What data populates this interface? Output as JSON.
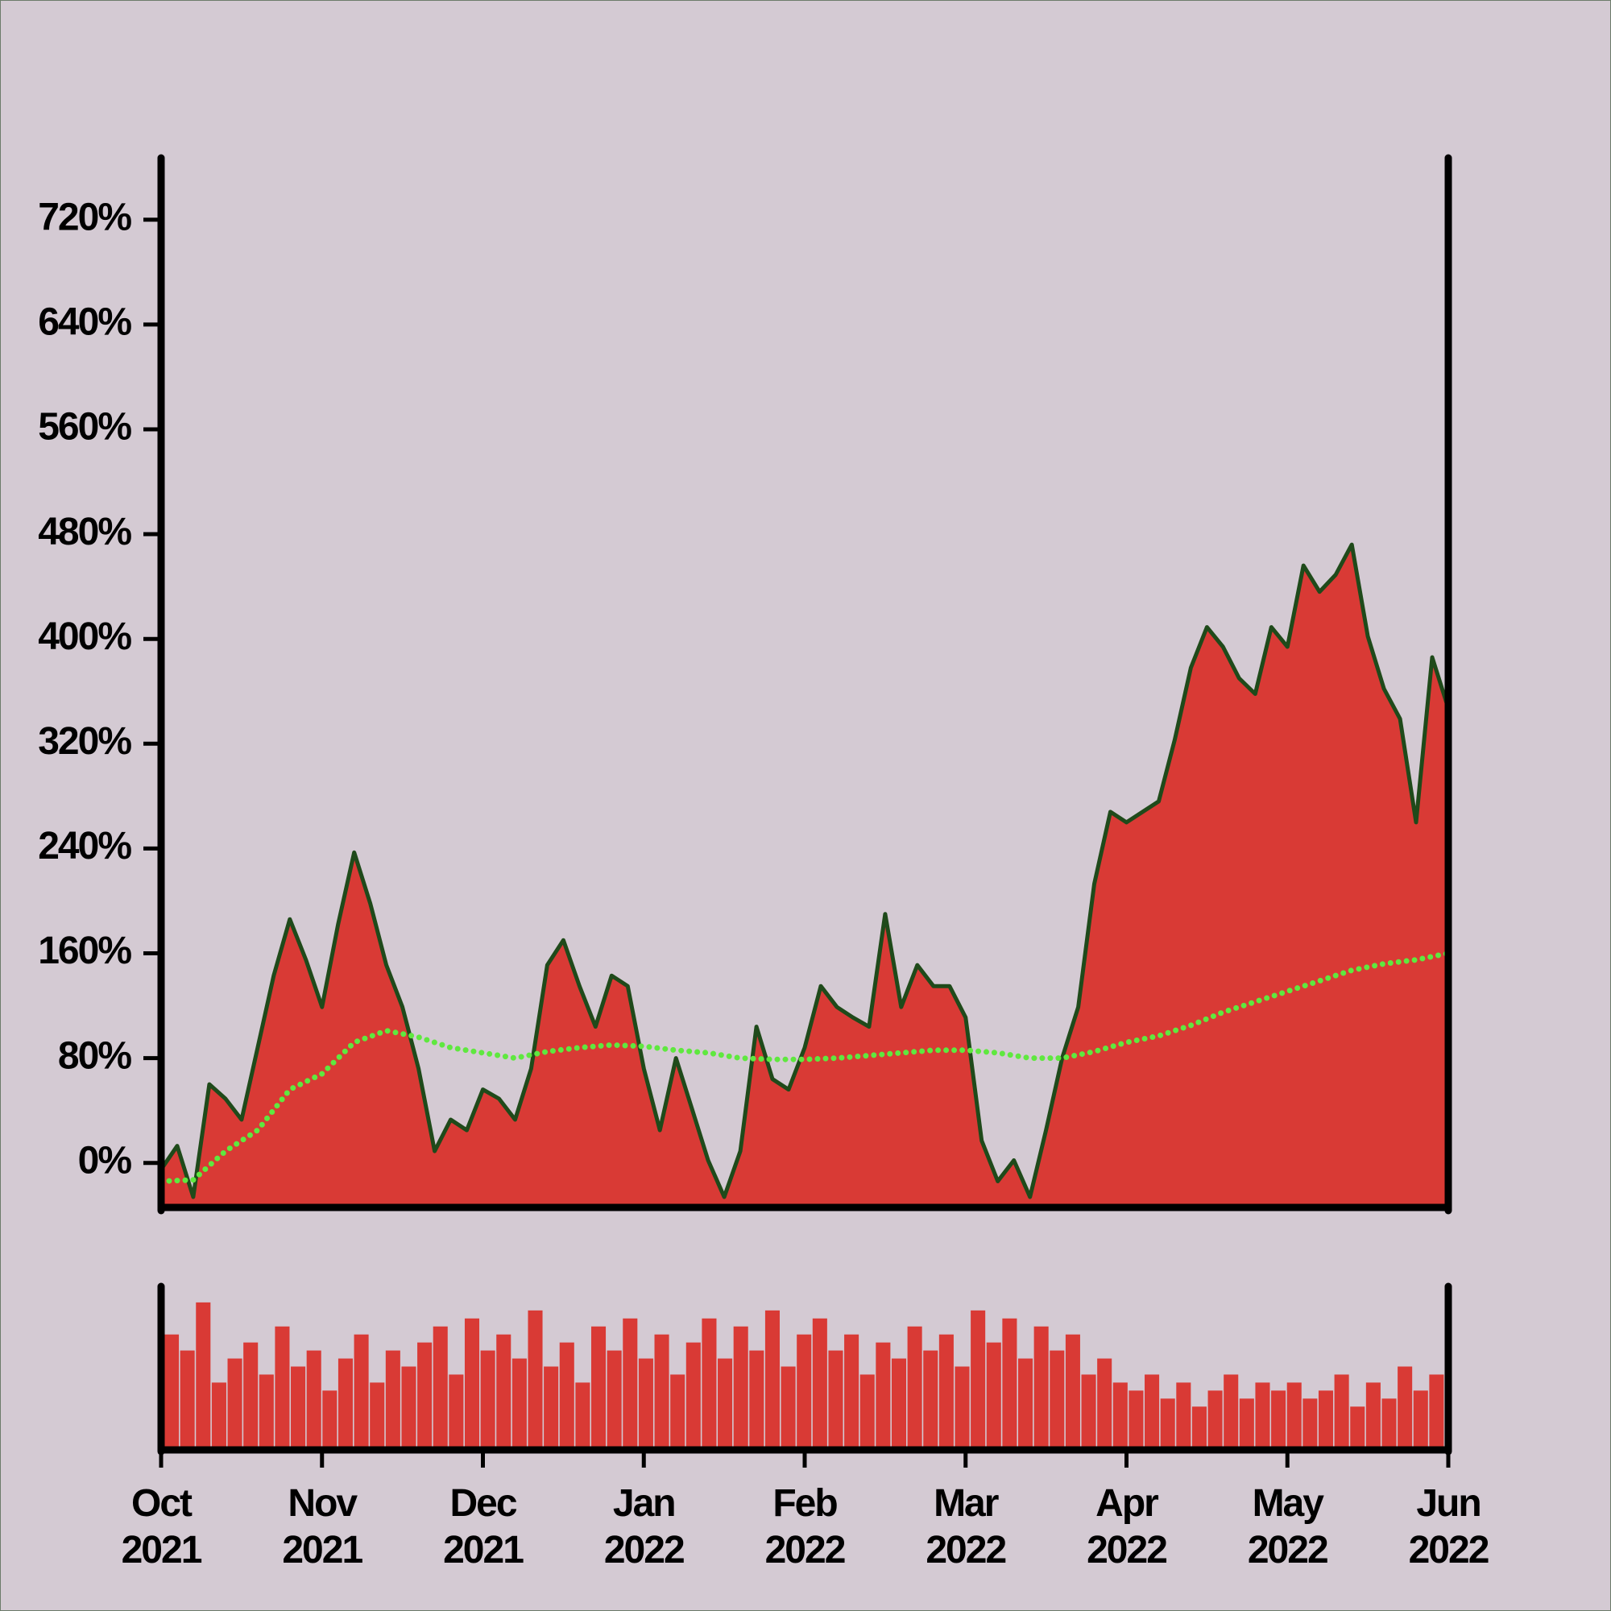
{
  "chart_data": [
    {
      "type": "area",
      "xlim": [
        "2021-10",
        "2022-06"
      ],
      "ylim": [
        -34,
        766
      ],
      "yticks": [
        {
          "value": 0,
          "label": "0%"
        },
        {
          "value": 80,
          "label": "80%"
        },
        {
          "value": 160,
          "label": "160%"
        },
        {
          "value": 240,
          "label": "240%"
        },
        {
          "value": 320,
          "label": "320%"
        },
        {
          "value": 400,
          "label": "400%"
        },
        {
          "value": 480,
          "label": "480%"
        },
        {
          "value": 560,
          "label": "560%"
        },
        {
          "value": 640,
          "label": "640%"
        },
        {
          "value": 720,
          "label": "720%"
        }
      ],
      "series": [
        {
          "type": "area",
          "color": "#d93a35",
          "line_color": "#1f4a1a",
          "values": [
            -5,
            13,
            -26,
            60,
            49,
            33,
            88,
            143,
            186,
            155,
            119,
            182,
            237,
            198,
            151,
            119,
            72,
            9,
            33,
            25,
            56,
            49,
            33,
            72,
            151,
            170,
            135,
            104,
            143,
            135,
            72,
            25,
            80,
            41,
            2,
            -26,
            9,
            104,
            64,
            56,
            88,
            135,
            119,
            111,
            104,
            190,
            119,
            151,
            135,
            135,
            111,
            17,
            -14,
            2,
            -26,
            25,
            80,
            119,
            213,
            268,
            260,
            268,
            276,
            323,
            378,
            409,
            394,
            370,
            358,
            409,
            394,
            456,
            436,
            449,
            472,
            402,
            362,
            339,
            260,
            386,
            347
          ]
        },
        {
          "type": "dotted-line",
          "color": "#5fe83f",
          "values": [
            -14,
            -13,
            9,
            25,
            56,
            68,
            92,
            101,
            96,
            88,
            84,
            80,
            85,
            88,
            90,
            89,
            86,
            84,
            80,
            79,
            79,
            80,
            82,
            84,
            86,
            86,
            84,
            80,
            80,
            85,
            92,
            97,
            105,
            115,
            123,
            131,
            139,
            147,
            152,
            155,
            160
          ]
        }
      ]
    },
    {
      "type": "bar",
      "xlim": [
        "2021-10",
        "2022-06"
      ],
      "xticks": [
        {
          "value": "2021-10",
          "label": "Oct\n2021"
        },
        {
          "value": "2021-11",
          "label": "Nov\n2021"
        },
        {
          "value": "2021-12",
          "label": "Dec\n2021"
        },
        {
          "value": "2022-01",
          "label": "Jan\n2022"
        },
        {
          "value": "2022-02",
          "label": "Feb\n2022"
        },
        {
          "value": "2022-03",
          "label": "Mar\n2022"
        },
        {
          "value": "2022-04",
          "label": "Apr\n2022"
        },
        {
          "value": "2022-05",
          "label": "May\n2022"
        },
        {
          "value": "2022-06",
          "label": "Jun\n2022"
        }
      ],
      "ylim": [
        0,
        100
      ],
      "color": "#d93a35",
      "values": [
        70,
        60,
        90,
        40,
        55,
        65,
        45,
        75,
        50,
        60,
        35,
        55,
        70,
        40,
        60,
        50,
        65,
        75,
        45,
        80,
        60,
        70,
        55,
        85,
        50,
        65,
        40,
        75,
        60,
        80,
        55,
        70,
        45,
        65,
        80,
        55,
        75,
        60,
        85,
        50,
        70,
        80,
        60,
        70,
        45,
        65,
        55,
        75,
        60,
        70,
        50,
        85,
        65,
        80,
        55,
        75,
        60,
        70,
        45,
        55,
        40,
        35,
        45,
        30,
        40,
        25,
        35,
        45,
        30,
        40,
        35,
        40,
        30,
        35,
        45,
        25,
        40,
        30,
        50,
        35,
        45
      ]
    }
  ]
}
